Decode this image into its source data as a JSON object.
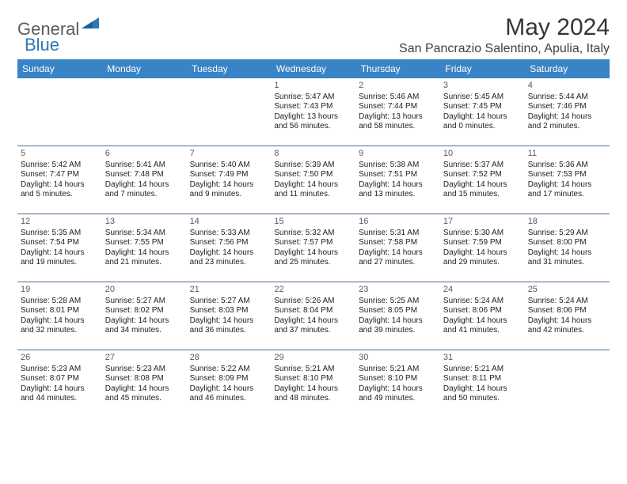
{
  "logo": {
    "text1": "General",
    "text2": "Blue"
  },
  "title": "May 2024",
  "location": "San Pancrazio Salentino, Apulia, Italy",
  "colors": {
    "header_bg": "#3984c6",
    "header_text": "#ffffff",
    "border": "#4a6e8e",
    "logo_gray": "#5b5b5b",
    "logo_blue": "#2a7ab9"
  },
  "weekdays": [
    "Sunday",
    "Monday",
    "Tuesday",
    "Wednesday",
    "Thursday",
    "Friday",
    "Saturday"
  ],
  "days": {
    "1": {
      "sr": "5:47 AM",
      "ss": "7:43 PM",
      "dl": "13 hours and 56 minutes."
    },
    "2": {
      "sr": "5:46 AM",
      "ss": "7:44 PM",
      "dl": "13 hours and 58 minutes."
    },
    "3": {
      "sr": "5:45 AM",
      "ss": "7:45 PM",
      "dl": "14 hours and 0 minutes."
    },
    "4": {
      "sr": "5:44 AM",
      "ss": "7:46 PM",
      "dl": "14 hours and 2 minutes."
    },
    "5": {
      "sr": "5:42 AM",
      "ss": "7:47 PM",
      "dl": "14 hours and 5 minutes."
    },
    "6": {
      "sr": "5:41 AM",
      "ss": "7:48 PM",
      "dl": "14 hours and 7 minutes."
    },
    "7": {
      "sr": "5:40 AM",
      "ss": "7:49 PM",
      "dl": "14 hours and 9 minutes."
    },
    "8": {
      "sr": "5:39 AM",
      "ss": "7:50 PM",
      "dl": "14 hours and 11 minutes."
    },
    "9": {
      "sr": "5:38 AM",
      "ss": "7:51 PM",
      "dl": "14 hours and 13 minutes."
    },
    "10": {
      "sr": "5:37 AM",
      "ss": "7:52 PM",
      "dl": "14 hours and 15 minutes."
    },
    "11": {
      "sr": "5:36 AM",
      "ss": "7:53 PM",
      "dl": "14 hours and 17 minutes."
    },
    "12": {
      "sr": "5:35 AM",
      "ss": "7:54 PM",
      "dl": "14 hours and 19 minutes."
    },
    "13": {
      "sr": "5:34 AM",
      "ss": "7:55 PM",
      "dl": "14 hours and 21 minutes."
    },
    "14": {
      "sr": "5:33 AM",
      "ss": "7:56 PM",
      "dl": "14 hours and 23 minutes."
    },
    "15": {
      "sr": "5:32 AM",
      "ss": "7:57 PM",
      "dl": "14 hours and 25 minutes."
    },
    "16": {
      "sr": "5:31 AM",
      "ss": "7:58 PM",
      "dl": "14 hours and 27 minutes."
    },
    "17": {
      "sr": "5:30 AM",
      "ss": "7:59 PM",
      "dl": "14 hours and 29 minutes."
    },
    "18": {
      "sr": "5:29 AM",
      "ss": "8:00 PM",
      "dl": "14 hours and 31 minutes."
    },
    "19": {
      "sr": "5:28 AM",
      "ss": "8:01 PM",
      "dl": "14 hours and 32 minutes."
    },
    "20": {
      "sr": "5:27 AM",
      "ss": "8:02 PM",
      "dl": "14 hours and 34 minutes."
    },
    "21": {
      "sr": "5:27 AM",
      "ss": "8:03 PM",
      "dl": "14 hours and 36 minutes."
    },
    "22": {
      "sr": "5:26 AM",
      "ss": "8:04 PM",
      "dl": "14 hours and 37 minutes."
    },
    "23": {
      "sr": "5:25 AM",
      "ss": "8:05 PM",
      "dl": "14 hours and 39 minutes."
    },
    "24": {
      "sr": "5:24 AM",
      "ss": "8:06 PM",
      "dl": "14 hours and 41 minutes."
    },
    "25": {
      "sr": "5:24 AM",
      "ss": "8:06 PM",
      "dl": "14 hours and 42 minutes."
    },
    "26": {
      "sr": "5:23 AM",
      "ss": "8:07 PM",
      "dl": "14 hours and 44 minutes."
    },
    "27": {
      "sr": "5:23 AM",
      "ss": "8:08 PM",
      "dl": "14 hours and 45 minutes."
    },
    "28": {
      "sr": "5:22 AM",
      "ss": "8:09 PM",
      "dl": "14 hours and 46 minutes."
    },
    "29": {
      "sr": "5:21 AM",
      "ss": "8:10 PM",
      "dl": "14 hours and 48 minutes."
    },
    "30": {
      "sr": "5:21 AM",
      "ss": "8:10 PM",
      "dl": "14 hours and 49 minutes."
    },
    "31": {
      "sr": "5:21 AM",
      "ss": "8:11 PM",
      "dl": "14 hours and 50 minutes."
    }
  },
  "labels": {
    "sunrise": "Sunrise: ",
    "sunset": "Sunset: ",
    "daylight": "Daylight: "
  },
  "grid": [
    [
      null,
      null,
      null,
      "1",
      "2",
      "3",
      "4"
    ],
    [
      "5",
      "6",
      "7",
      "8",
      "9",
      "10",
      "11"
    ],
    [
      "12",
      "13",
      "14",
      "15",
      "16",
      "17",
      "18"
    ],
    [
      "19",
      "20",
      "21",
      "22",
      "23",
      "24",
      "25"
    ],
    [
      "26",
      "27",
      "28",
      "29",
      "30",
      "31",
      null
    ]
  ]
}
